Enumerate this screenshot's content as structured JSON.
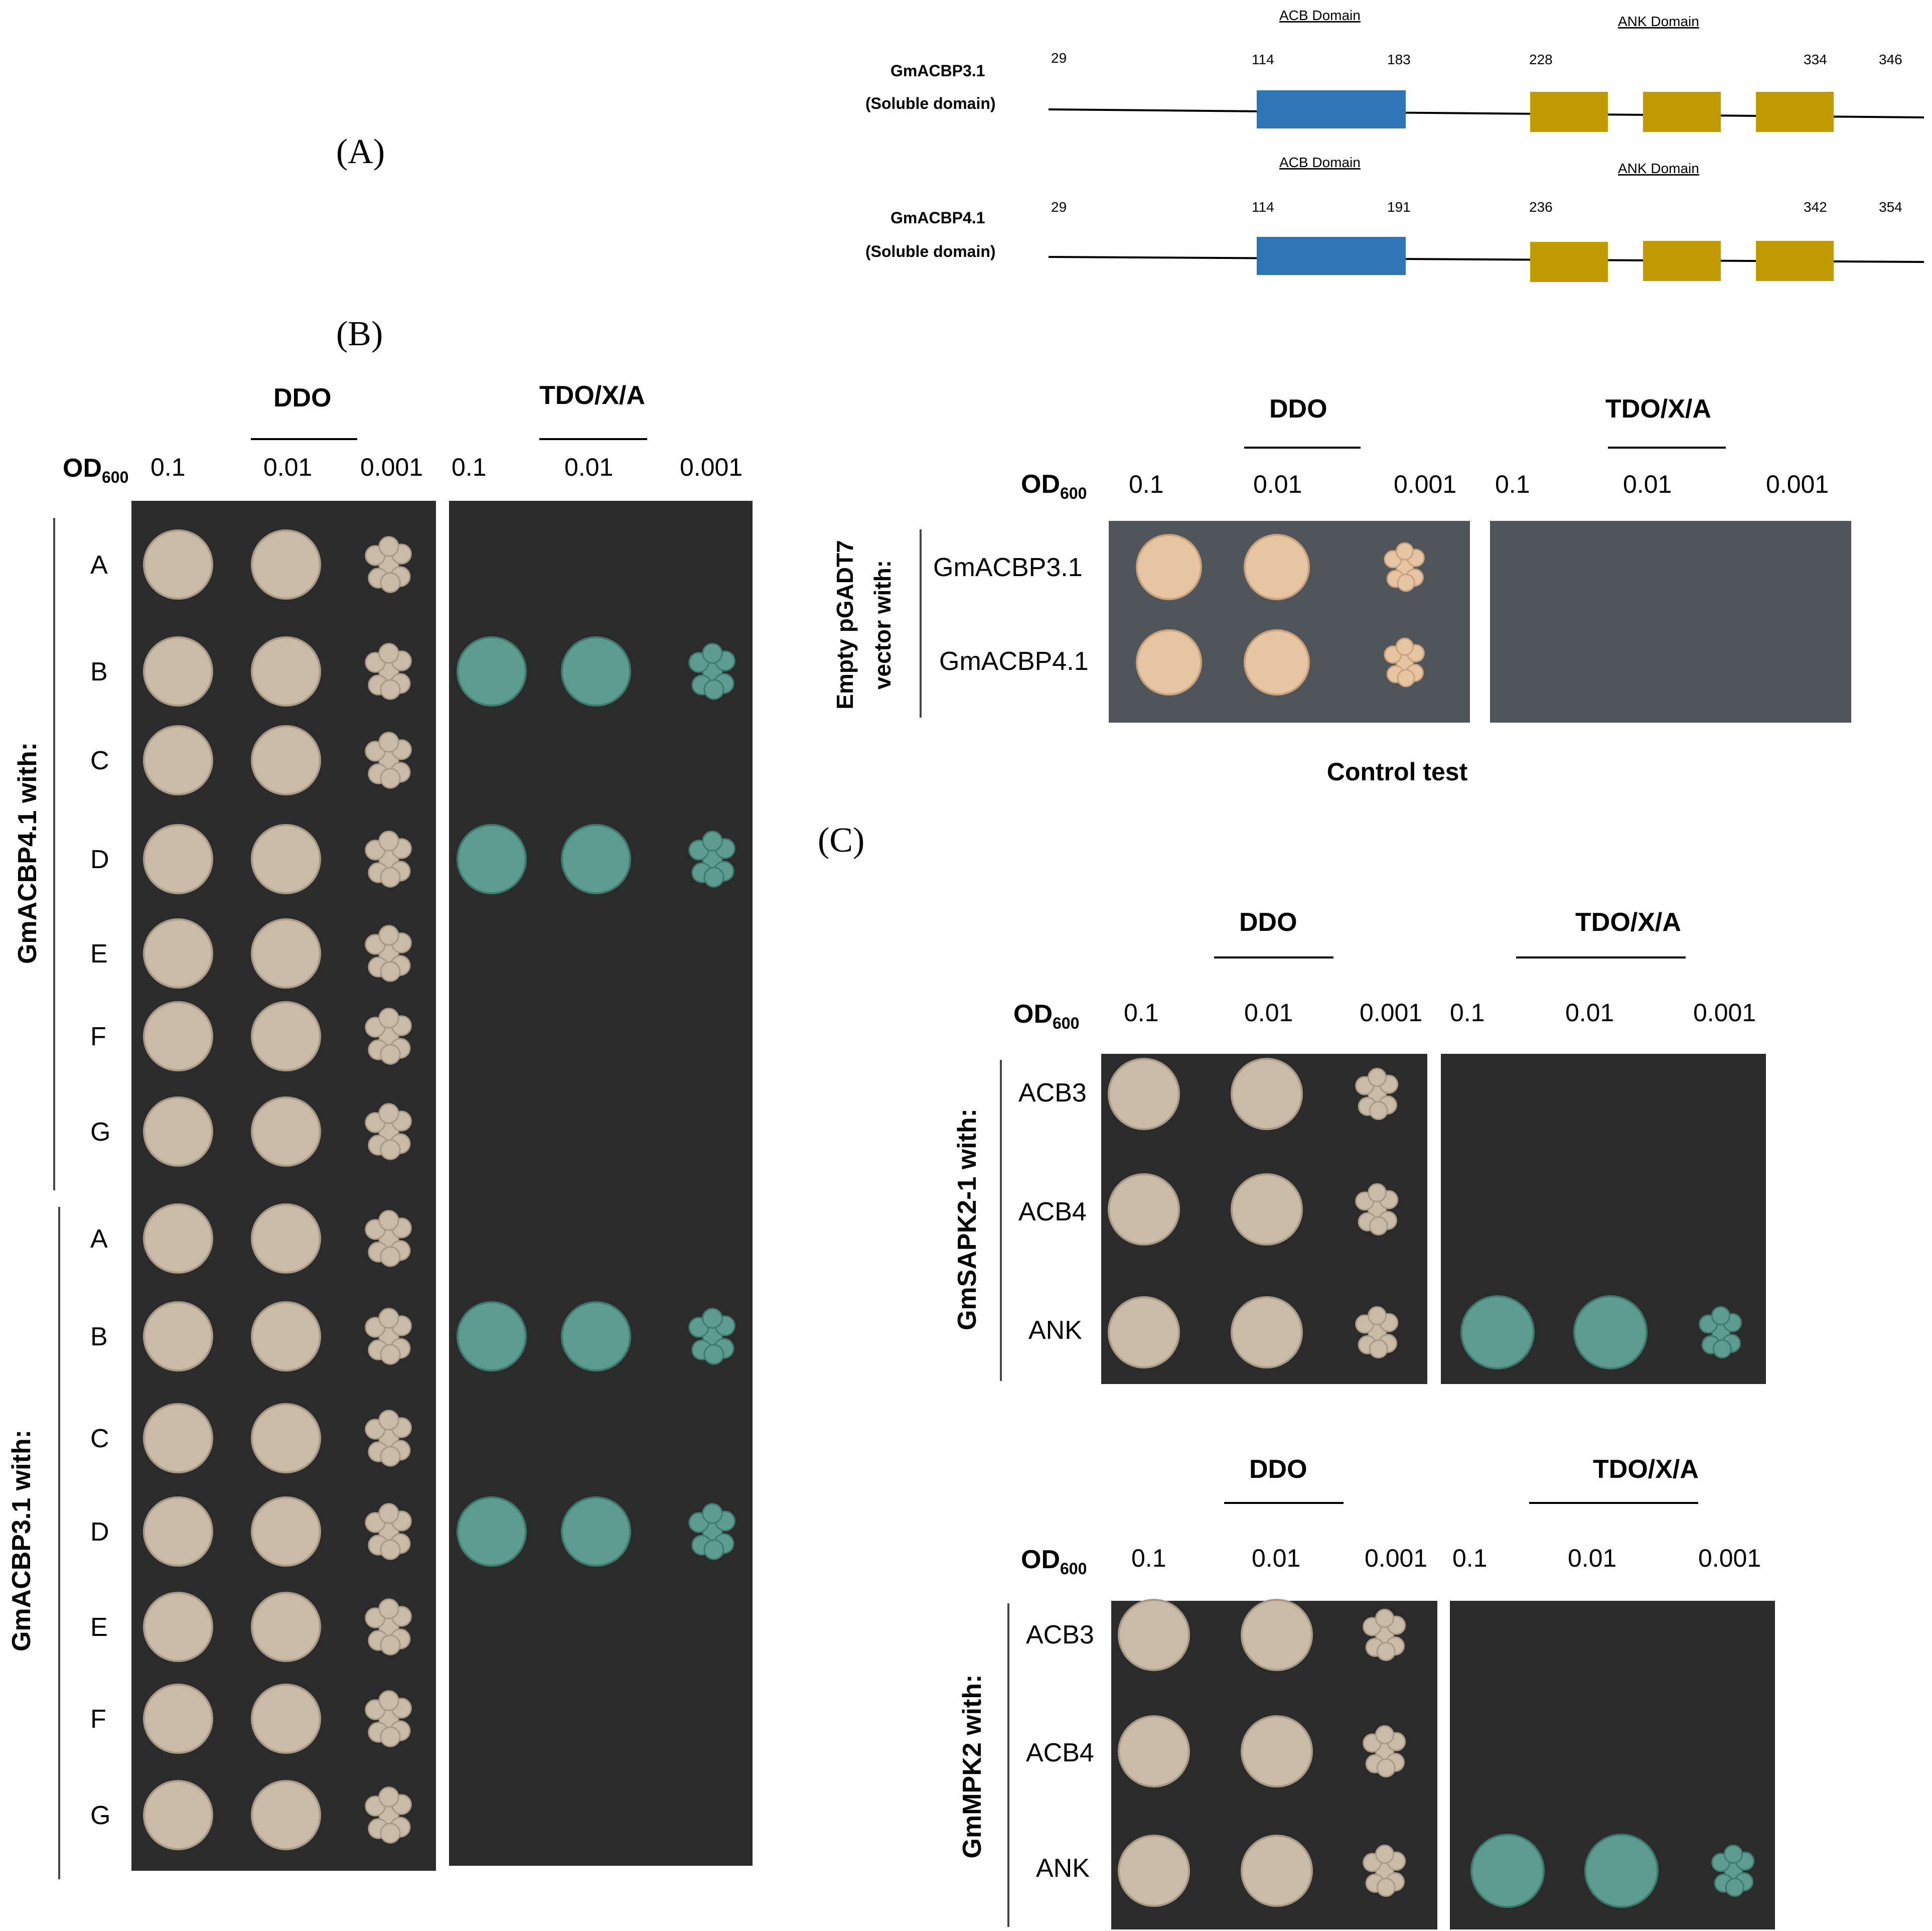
{
  "panel_labels": {
    "a": "(A)",
    "b": "(B)",
    "c": "(C)"
  },
  "domain_map": {
    "constructs": [
      {
        "name": "GmACBP3.1",
        "sub": "(Soluble domain)",
        "acb_label": "ACB Domain",
        "ank_label": "ANK Domain",
        "pos": [
          "29",
          "114",
          "183",
          "228",
          "334",
          "346"
        ]
      },
      {
        "name": "GmACBP4.1",
        "sub": "(Soluble domain)",
        "acb_label": "ACB Domain",
        "ank_label": "ANK Domain",
        "pos": [
          "29",
          "114",
          "191",
          "236",
          "342",
          "354"
        ]
      }
    ],
    "colors": {
      "acb": "#2e75b6",
      "ank": "#c09a00"
    }
  },
  "panel_b": {
    "media": [
      "DDO",
      "TDO/X/A"
    ],
    "od_label": "OD",
    "od_sub": "600",
    "od_values": [
      "0.1",
      "0.01",
      "0.001",
      "0.1",
      "0.01",
      "0.001"
    ],
    "groups": [
      {
        "label": "GmACBP4.1 with:",
        "rows": [
          "A",
          "B",
          "C",
          "D",
          "E",
          "F",
          "G"
        ],
        "tdo_growth": [
          false,
          true,
          false,
          true,
          false,
          false,
          false
        ]
      },
      {
        "label": "GmACBP3.1 with:",
        "rows": [
          "A",
          "B",
          "C",
          "D",
          "E",
          "F",
          "G"
        ],
        "tdo_growth": [
          false,
          true,
          false,
          true,
          false,
          false,
          false
        ]
      }
    ]
  },
  "control": {
    "media": [
      "DDO",
      "TDO/X/A"
    ],
    "od_label": "OD",
    "od_sub": "600",
    "od_values": [
      "0.1",
      "0.01",
      "0.001",
      "0.1",
      "0.01",
      "0.001"
    ],
    "group_label_line1": "Empty pGADT7",
    "group_label_line2": "vector with:",
    "rows": [
      "GmACBP3.1",
      "GmACBP4.1"
    ],
    "title": "Control test"
  },
  "panel_c": [
    {
      "media": [
        "DDO",
        "TDO/X/A"
      ],
      "od_label": "OD",
      "od_sub": "600",
      "od_values": [
        "0.1",
        "0.01",
        "0.001",
        "0.1",
        "0.01",
        "0.001"
      ],
      "group_label": "GmSAPK2-1 with:",
      "rows": [
        "ACB3",
        "ACB4",
        "ANK"
      ],
      "tdo_growth": [
        false,
        false,
        true
      ]
    },
    {
      "media": [
        "DDO",
        "TDO/X/A"
      ],
      "od_label": "OD",
      "od_sub": "600",
      "od_values": [
        "0.1",
        "0.01",
        "0.001",
        "0.1",
        "0.01",
        "0.001"
      ],
      "group_label": "GmMPK2 with:",
      "rows": [
        "ACB3",
        "ACB4",
        "ANK"
      ],
      "tdo_growth": [
        false,
        false,
        true
      ]
    }
  ],
  "colony_colors": {
    "beige": "#c9bba6",
    "beige_dark": "#a89a86",
    "blue": "#5e9c92",
    "blue_dark": "#3f7a70",
    "control": "#e6c4a4",
    "control_dark": "#c9a27e"
  }
}
